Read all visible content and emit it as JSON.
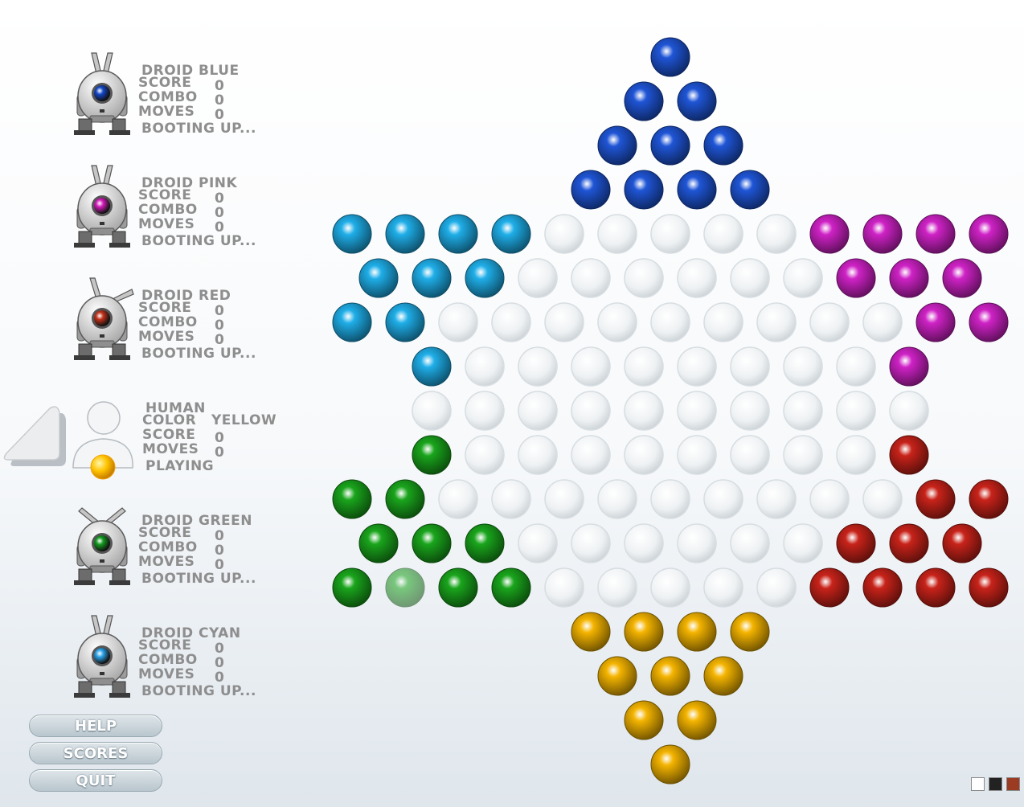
{
  "players": [
    {
      "kind": "droid",
      "name": "DROID BLUE",
      "color": "#1f55d6",
      "eye": "#1246c4",
      "ears": "up",
      "stats": [
        {
          "label": "SCORE",
          "value": "0"
        },
        {
          "label": "COMBO",
          "value": "0"
        },
        {
          "label": "MOVES",
          "value": "0"
        }
      ],
      "status": "BOOTING UP..."
    },
    {
      "kind": "droid",
      "name": "DROID PINK",
      "color": "#cf22c6",
      "eye": "#d21ab8",
      "ears": "up",
      "stats": [
        {
          "label": "SCORE",
          "value": "0"
        },
        {
          "label": "COMBO",
          "value": "0"
        },
        {
          "label": "MOVES",
          "value": "0"
        }
      ],
      "status": "BOOTING UP..."
    },
    {
      "kind": "droid",
      "name": "DROID RED",
      "color": "#c8231a",
      "eye": "#c2321b",
      "ears": "tilt",
      "stats": [
        {
          "label": "SCORE",
          "value": "0"
        },
        {
          "label": "COMBO",
          "value": "0"
        },
        {
          "label": "MOVES",
          "value": "0"
        }
      ],
      "status": "BOOTING UP..."
    },
    {
      "kind": "human",
      "name": "HUMAN",
      "color_label": "COLOR",
      "color_value": "YELLOW",
      "stats": [
        {
          "label": "SCORE",
          "value": "0"
        },
        {
          "label": "MOVES",
          "value": "0"
        }
      ],
      "status": "PLAYING"
    },
    {
      "kind": "droid",
      "name": "DROID GREEN",
      "color": "#1aa51c",
      "eye": "#139a1f",
      "ears": "out",
      "stats": [
        {
          "label": "SCORE",
          "value": "0"
        },
        {
          "label": "COMBO",
          "value": "0"
        },
        {
          "label": "MOVES",
          "value": "0"
        }
      ],
      "status": "BOOTING UP..."
    },
    {
      "kind": "droid",
      "name": "DROID CYAN",
      "color": "#1faee8",
      "eye": "#2aa2e8",
      "ears": "up",
      "stats": [
        {
          "label": "SCORE",
          "value": "0"
        },
        {
          "label": "COMBO",
          "value": "0"
        },
        {
          "label": "MOVES",
          "value": "0"
        }
      ],
      "status": "BOOTING UP..."
    }
  ],
  "buttons": {
    "help": "HELP",
    "scores": "SCORES",
    "quit": "QUIT"
  },
  "marble_colors": {
    "blue": "#1f55d6",
    "pink": "#cf22c6",
    "red": "#c8231a",
    "yellow": "#f4b400",
    "green": "#1aa51c",
    "cyan": "#1faee8",
    "empty": "#eef1f3"
  },
  "board_rows": [
    "B",
    "BB",
    "BBB",
    "BBBB",
    "CCCC.....PPPP",
    "CCC......PPP",
    "CC.........PP",
    "C........P",
    "..........",
    "G........R",
    "GG.........RR",
    "GGG......RRR",
    "GgGG.....RRRR",
    "YYYY",
    "YYY",
    "YY",
    "Y"
  ],
  "theme_swatches": [
    "#ffffff",
    "#222222",
    "#9b3b22"
  ]
}
